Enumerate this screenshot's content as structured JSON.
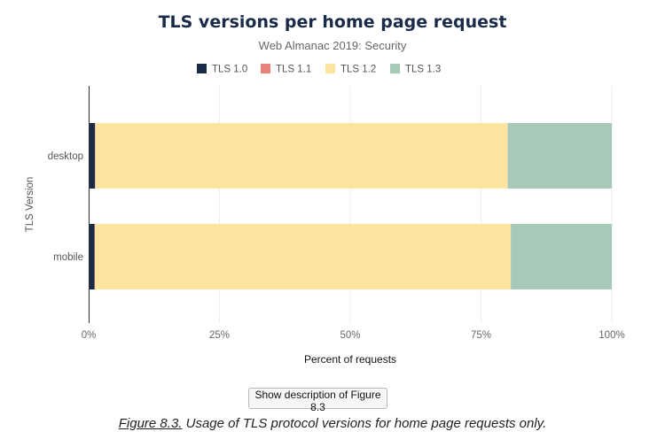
{
  "chart_data": {
    "type": "bar",
    "orientation": "horizontal",
    "stacked": true,
    "title": "TLS versions per home page request",
    "subtitle": "Web Almanac 2019: Security",
    "xlabel": "Percent of requests",
    "ylabel": "TLS Version",
    "xlim": [
      0,
      100
    ],
    "x_ticks": [
      "0%",
      "25%",
      "50%",
      "75%",
      "100%"
    ],
    "grid": true,
    "legend_position": "top",
    "categories": [
      "desktop",
      "mobile"
    ],
    "series": [
      {
        "name": "TLS 1.0",
        "color": "#1a2b49",
        "values": [
          1.2,
          1.1
        ]
      },
      {
        "name": "TLS 1.1",
        "color": "#e6827a",
        "values": [
          0.1,
          0.1
        ]
      },
      {
        "name": "TLS 1.2",
        "color": "#fde49e",
        "values": [
          78.8,
          79.5
        ]
      },
      {
        "name": "TLS 1.3",
        "color": "#a8c8b8",
        "values": [
          19.9,
          19.3
        ]
      }
    ]
  },
  "figure": {
    "button_label": "Show description of Figure 8.3",
    "caption_link": "Figure 8.3.",
    "caption_text": " Usage of TLS protocol versions for home page requests only."
  }
}
